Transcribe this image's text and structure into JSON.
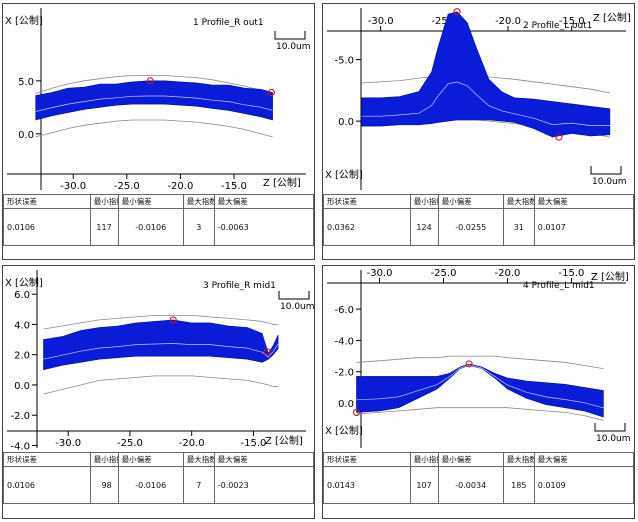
{
  "chart_data": [
    {
      "type": "area",
      "panel_no": "1",
      "title": "Profile_R out1",
      "xlabel": "Z [公制]",
      "ylabel": "X [公制]",
      "scale_label": "10.0um",
      "xlim": [
        -34.5,
        -8.0
      ],
      "ylim": [
        -5.5,
        11.5
      ],
      "x_ticks": [
        {
          "v": -30,
          "label": "-30.0"
        },
        {
          "v": -25,
          "label": "-25.0"
        },
        {
          "v": -20,
          "label": "-20.0"
        },
        {
          "v": -15,
          "label": "-15.0"
        }
      ],
      "y_ticks": [
        {
          "v": 5,
          "label": "5.0"
        },
        {
          "v": 0,
          "label": "0.0"
        }
      ],
      "x": [
        -33.5,
        -32,
        -30.5,
        -29,
        -27.5,
        -26,
        -24.5,
        -23,
        -21.5,
        -20,
        -18.5,
        -17,
        -15.5,
        -14,
        -12.5,
        -11.4
      ],
      "upper": [
        3.6,
        3.9,
        4.3,
        4.4,
        4.7,
        4.7,
        4.9,
        5.0,
        5.0,
        4.9,
        4.8,
        4.6,
        4.6,
        4.3,
        4.2,
        3.9
      ],
      "lower": [
        1.3,
        1.7,
        2.0,
        2.3,
        2.5,
        2.7,
        2.8,
        2.8,
        2.8,
        2.7,
        2.6,
        2.4,
        2.2,
        1.9,
        1.6,
        1.3
      ],
      "ref_upper": [
        3.8,
        4.3,
        4.7,
        5.0,
        5.2,
        5.4,
        5.5,
        5.5,
        5.5,
        5.4,
        5.3,
        5.1,
        4.8,
        4.5,
        4.1,
        3.8
      ],
      "ref_lower": [
        -0.3,
        0.1,
        0.5,
        0.8,
        1.0,
        1.2,
        1.3,
        1.3,
        1.3,
        1.2,
        1.1,
        0.9,
        0.7,
        0.4,
        0.0,
        -0.3
      ],
      "markers": [
        {
          "x": -22.8,
          "y": 5.0
        },
        {
          "x": -11.5,
          "y": 3.9
        }
      ],
      "stats": {
        "headers": [
          "形状误差",
          "最小指数",
          "最小偏差",
          "最大指数",
          "最大偏差"
        ],
        "values": [
          "0.0106",
          "117",
          "-0.0106",
          "3",
          "-0.0063"
        ]
      }
    },
    {
      "type": "area",
      "panel_no": "2",
      "title": "Profile_L out1",
      "xlabel": "X [公制]",
      "ylabel": "Z [公制]",
      "scale_label": "10.0um",
      "xlim": [
        -32.8,
        -10.5
      ],
      "ylim": [
        -5.6,
        9.2
      ],
      "x_ticks": [
        {
          "v": -30,
          "label": "-30.0"
        },
        {
          "v": -25,
          "label": "-25.0"
        },
        {
          "v": -20,
          "label": "-20.0"
        },
        {
          "v": -15,
          "label": "-15.0"
        }
      ],
      "y_ticks": [
        {
          "v": 5,
          "label": "-5.0"
        },
        {
          "v": 0,
          "label": "0.0"
        }
      ],
      "x": [
        -31.5,
        -30,
        -28.5,
        -27,
        -26,
        -25.5,
        -24.7,
        -24,
        -23.2,
        -22.5,
        -21.5,
        -20.5,
        -19.5,
        -18,
        -16.5,
        -15,
        -13.5,
        -12
      ],
      "upper": [
        1.9,
        1.9,
        2.0,
        2.4,
        4.0,
        6.0,
        8.7,
        8.9,
        8.0,
        6.0,
        3.4,
        2.4,
        1.9,
        1.8,
        1.6,
        1.4,
        1.2,
        1.0
      ],
      "lower": [
        -0.4,
        -0.4,
        -0.3,
        -0.3,
        -0.2,
        -0.1,
        0.0,
        0.1,
        0.1,
        0.1,
        0.1,
        0.0,
        -0.1,
        -0.6,
        -1.3,
        -1.0,
        -1.2,
        -1.1
      ],
      "ref_upper": [
        3.1,
        3.2,
        3.3,
        3.5,
        3.6,
        3.6,
        3.7,
        3.7,
        3.7,
        3.7,
        3.6,
        3.5,
        3.4,
        3.2,
        3.0,
        2.8,
        2.6,
        2.3
      ],
      "ref_lower": [
        -0.4,
        -0.3,
        -0.2,
        -0.1,
        0.0,
        0.0,
        0.1,
        0.1,
        0.1,
        0.1,
        0.0,
        -0.1,
        -0.2,
        -0.4,
        -0.6,
        -0.8,
        -1.0,
        -1.3
      ],
      "markers": [
        {
          "x": -24.0,
          "y": 8.9
        },
        {
          "x": -16.0,
          "y": -1.3
        }
      ],
      "stats": {
        "headers": [
          "形状误差",
          "最小指数",
          "最小偏差",
          "最大指数",
          "最大偏差"
        ],
        "values": [
          "0.0362",
          "124",
          "-0.0255",
          "31",
          "0.0107"
        ]
      }
    },
    {
      "type": "area",
      "panel_no": "3",
      "title": "Profile_R mid1",
      "xlabel": "Z [公制]",
      "ylabel": "X [公制]",
      "scale_label": "10.0um",
      "xlim": [
        -33.5,
        -10.5
      ],
      "ylim": [
        -4.3,
        7.6
      ],
      "x_ticks": [
        {
          "v": -30,
          "label": "-30.0"
        },
        {
          "v": -25,
          "label": "-25.0"
        },
        {
          "v": -20,
          "label": "-20.0"
        },
        {
          "v": -15,
          "label": "-15.0"
        }
      ],
      "y_ticks": [
        {
          "v": 6,
          "label": "6.0"
        },
        {
          "v": 4,
          "label": "4.0"
        },
        {
          "v": 2,
          "label": "2.0"
        },
        {
          "v": 0,
          "label": "0.0"
        },
        {
          "v": -2,
          "label": "-2.0"
        },
        {
          "v": -4,
          "label": "-4.0"
        }
      ],
      "x": [
        -32.0,
        -30.5,
        -29,
        -27.5,
        -26,
        -24.5,
        -23,
        -21.5,
        -20,
        -18.5,
        -17,
        -15.5,
        -14.3,
        -13.8,
        -13.4,
        -13.0
      ],
      "upper": [
        3.0,
        3.2,
        3.6,
        3.8,
        3.9,
        4.1,
        4.2,
        4.3,
        4.1,
        4.1,
        3.9,
        3.8,
        3.4,
        2.1,
        2.6,
        3.3
      ],
      "lower": [
        1.0,
        1.3,
        1.5,
        1.7,
        1.8,
        1.9,
        1.9,
        1.9,
        1.9,
        1.9,
        1.8,
        1.7,
        1.5,
        1.7,
        2.0,
        2.4
      ],
      "ref_upper": [
        3.7,
        3.9,
        4.1,
        4.3,
        4.4,
        4.5,
        4.6,
        4.6,
        4.6,
        4.5,
        4.4,
        4.3,
        4.2,
        4.1,
        4.0,
        4.0
      ],
      "ref_lower": [
        -0.6,
        -0.3,
        0.0,
        0.3,
        0.4,
        0.5,
        0.6,
        0.6,
        0.6,
        0.5,
        0.4,
        0.3,
        0.1,
        0.0,
        -0.1,
        -0.1
      ],
      "markers": [
        {
          "x": -21.5,
          "y": 4.3
        },
        {
          "x": -13.9,
          "y": 2.2
        }
      ],
      "stats": {
        "headers": [
          "形状误差",
          "最小指数",
          "最小偏差",
          "最大指数",
          "最大偏差"
        ],
        "values": [
          "0.0106",
          "98",
          "-0.0106",
          "7",
          "-0.0023"
        ]
      }
    },
    {
      "type": "area",
      "panel_no": "4",
      "title": "Profile_L mid1",
      "xlabel": "X [公制]",
      "ylabel": "Z [公制]",
      "scale_label": "10.0um",
      "xlim": [
        -32.7,
        -10.5
      ],
      "ylim": [
        -3.0,
        8.5
      ],
      "x_ticks": [
        {
          "v": -30,
          "label": "-30.0"
        },
        {
          "v": -25,
          "label": "-25.0"
        },
        {
          "v": -20,
          "label": "-20.0"
        },
        {
          "v": -15,
          "label": "-15.0"
        }
      ],
      "y_ticks": [
        {
          "v": 6,
          "label": "-6.0"
        },
        {
          "v": 4,
          "label": "-4.0"
        },
        {
          "v": 2,
          "label": "-2.0"
        },
        {
          "v": 0,
          "label": "0.0"
        }
      ],
      "x": [
        -31.8,
        -30,
        -28.5,
        -27,
        -25.5,
        -24.5,
        -23.7,
        -23,
        -22,
        -21,
        -20,
        -18.5,
        -17,
        -15.5,
        -14,
        -12.5
      ],
      "upper": [
        1.7,
        1.7,
        1.7,
        1.7,
        1.7,
        1.9,
        2.3,
        2.5,
        2.3,
        1.9,
        1.6,
        1.4,
        1.3,
        1.2,
        1.0,
        0.8
      ],
      "lower": [
        -0.6,
        -0.5,
        -0.3,
        0.3,
        0.9,
        1.6,
        2.2,
        2.4,
        2.2,
        1.6,
        0.9,
        0.3,
        -0.1,
        -0.3,
        -0.5,
        -0.9
      ],
      "ref_upper": [
        2.6,
        2.7,
        2.8,
        2.9,
        2.9,
        3.0,
        3.0,
        3.0,
        3.0,
        3.0,
        2.9,
        2.8,
        2.7,
        2.6,
        2.4,
        2.2
      ],
      "ref_lower": [
        -0.7,
        -0.6,
        -0.5,
        -0.4,
        -0.3,
        -0.3,
        -0.3,
        -0.3,
        -0.3,
        -0.3,
        -0.3,
        -0.4,
        -0.5,
        -0.6,
        -0.8,
        -1.1
      ],
      "markers": [
        {
          "x": -23.0,
          "y": 2.5
        },
        {
          "x": -31.8,
          "y": -0.6
        }
      ],
      "stats": {
        "headers": [
          "形状误差",
          "最小指数",
          "最小偏差",
          "最大指数",
          "最大偏差"
        ],
        "values": [
          "0.0143",
          "107",
          "-0.0034",
          "185",
          "0.0109"
        ]
      }
    }
  ]
}
